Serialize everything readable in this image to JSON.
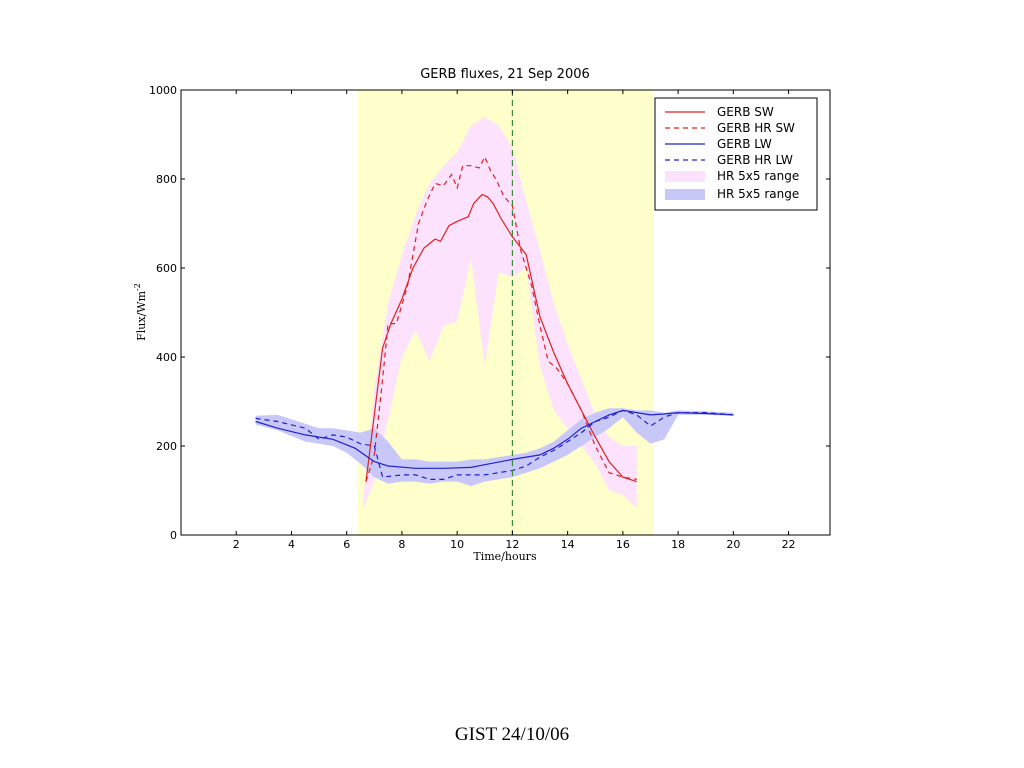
{
  "chart_data": {
    "type": "line",
    "title": "GERB fluxes, 21 Sep 2006",
    "xlabel": "Time/hours",
    "ylabel": "Flux/Wm",
    "ylabel_sup": "-2",
    "xlim": [
      0,
      23.5
    ],
    "ylim": [
      0,
      1000
    ],
    "xticks": [
      2,
      4,
      6,
      8,
      10,
      12,
      14,
      16,
      18,
      20,
      22
    ],
    "yticks": [
      0,
      200,
      400,
      600,
      800,
      1000
    ],
    "grid": false,
    "legend_position": "top-right",
    "daylight_span": {
      "x": [
        6.4,
        17.1
      ],
      "color": "#ffffcc"
    },
    "vertical_line": {
      "x": 12,
      "color": "#3a8a3a",
      "style": "dashed"
    },
    "series": [
      {
        "name": "GERB SW",
        "color": "#e02020",
        "style": "solid",
        "x": [
          6.7,
          7.0,
          7.3,
          7.6,
          8.0,
          8.4,
          8.8,
          9.2,
          9.4,
          9.7,
          10.0,
          10.4,
          10.6,
          10.9,
          11.1,
          11.3,
          11.6,
          12.0,
          12.5,
          13.0,
          13.5,
          14.0,
          14.5,
          15.0,
          15.5,
          16.0,
          16.5
        ],
        "y": [
          120,
          270,
          420,
          475,
          530,
          600,
          645,
          665,
          660,
          695,
          705,
          715,
          745,
          765,
          760,
          745,
          710,
          670,
          630,
          490,
          410,
          340,
          280,
          220,
          165,
          130,
          120
        ]
      },
      {
        "name": "GERB HR SW",
        "color": "#e02020",
        "style": "dashed",
        "x": [
          6.7,
          7.0,
          7.3,
          7.5,
          7.8,
          8.2,
          8.6,
          8.9,
          9.2,
          9.5,
          9.8,
          10.0,
          10.2,
          10.5,
          10.8,
          11.0,
          11.2,
          11.4,
          11.7,
          12.0,
          12.3,
          12.7,
          13.0,
          13.3,
          13.6,
          14.0,
          14.5,
          15.0,
          15.5,
          16.0,
          16.5
        ],
        "y": [
          120,
          180,
          350,
          475,
          475,
          560,
          700,
          750,
          790,
          785,
          810,
          780,
          830,
          830,
          825,
          850,
          820,
          800,
          760,
          740,
          640,
          560,
          470,
          390,
          375,
          340,
          280,
          200,
          140,
          130,
          125
        ]
      },
      {
        "name": "GERB LW",
        "color": "#2020d0",
        "style": "solid",
        "x": [
          2.7,
          3.5,
          4.5,
          5.5,
          6.3,
          7.0,
          7.5,
          8.5,
          9.5,
          10.5,
          11.0,
          12.0,
          13.0,
          13.5,
          14.0,
          14.5,
          15.0,
          15.5,
          16.0,
          16.5,
          17.0,
          17.5,
          18.0,
          19.0,
          20.0
        ],
        "y": [
          255,
          240,
          225,
          215,
          195,
          165,
          155,
          150,
          150,
          152,
          158,
          170,
          180,
          195,
          215,
          240,
          255,
          270,
          280,
          275,
          270,
          272,
          275,
          273,
          270
        ]
      },
      {
        "name": "GERB HR LW",
        "color": "#2020d0",
        "style": "dashed",
        "x": [
          2.7,
          3.5,
          4.5,
          5.0,
          5.5,
          6.0,
          6.5,
          7.0,
          7.3,
          8.0,
          8.5,
          9.0,
          9.5,
          10.0,
          10.5,
          11.0,
          11.5,
          12.0,
          12.5,
          13.0,
          13.5,
          14.0,
          14.5,
          15.0,
          15.5,
          16.0,
          16.5,
          17.0,
          17.5,
          18.0,
          19.0,
          20.0
        ],
        "y": [
          262,
          255,
          240,
          215,
          225,
          220,
          205,
          200,
          130,
          135,
          135,
          125,
          125,
          135,
          135,
          135,
          140,
          145,
          155,
          175,
          190,
          210,
          230,
          255,
          265,
          280,
          270,
          245,
          265,
          275,
          275,
          270
        ]
      }
    ],
    "bands": [
      {
        "name": "HR 5x5 range",
        "color": "#fde2fd",
        "x": [
          6.6,
          7.0,
          7.5,
          8.0,
          8.5,
          9.0,
          9.5,
          10.0,
          10.5,
          11.0,
          11.5,
          12.0,
          12.5,
          13.0,
          13.5,
          14.0,
          14.5,
          15.0,
          15.5,
          16.0,
          16.5
        ],
        "upper": [
          80,
          330,
          520,
          630,
          720,
          790,
          830,
          860,
          920,
          940,
          920,
          870,
          750,
          640,
          520,
          430,
          350,
          270,
          220,
          200,
          200
        ],
        "lower": [
          60,
          120,
          260,
          400,
          460,
          390,
          470,
          480,
          620,
          380,
          590,
          580,
          600,
          380,
          280,
          240,
          200,
          160,
          100,
          90,
          60
        ]
      },
      {
        "name": "HR 5x5 range",
        "color": "#c8c8f8",
        "x": [
          2.7,
          3.5,
          4.5,
          5.0,
          5.5,
          6.0,
          6.5,
          7.0,
          7.5,
          8.0,
          8.5,
          9.0,
          9.5,
          10.0,
          10.5,
          11.0,
          11.5,
          12.0,
          12.5,
          13.0,
          13.5,
          14.0,
          14.5,
          15.0,
          15.5,
          16.0,
          16.5,
          17.0,
          17.5,
          18.0,
          19.0,
          20.0
        ],
        "upper": [
          268,
          270,
          250,
          240,
          240,
          235,
          230,
          240,
          210,
          170,
          170,
          165,
          165,
          165,
          170,
          170,
          175,
          180,
          185,
          195,
          210,
          235,
          260,
          275,
          285,
          285,
          280,
          280,
          275,
          280,
          278,
          275
        ],
        "lower": [
          248,
          235,
          210,
          205,
          200,
          185,
          160,
          130,
          115,
          120,
          120,
          115,
          120,
          120,
          110,
          120,
          125,
          130,
          140,
          150,
          165,
          180,
          200,
          220,
          240,
          265,
          230,
          205,
          215,
          270,
          270,
          268
        ]
      }
    ]
  },
  "footer": {
    "text": "GIST 24/10/06"
  }
}
